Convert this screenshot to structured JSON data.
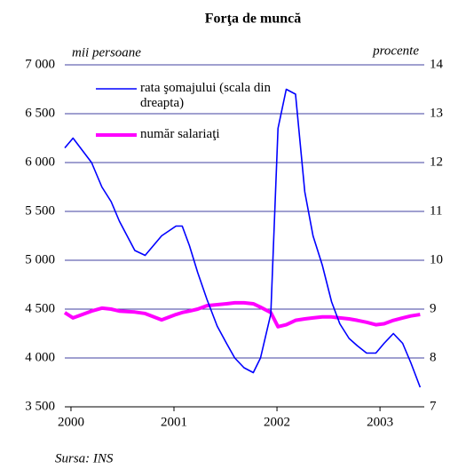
{
  "chart_data": {
    "type": "line",
    "title": "Forţa de muncă",
    "ylabel": "mii persoane",
    "y2label": "procente",
    "source": "Sursa: INS",
    "x": [
      1999.94,
      2000.02,
      2000.2,
      2000.3,
      2000.39,
      2000.47,
      2000.62,
      2000.72,
      2000.88,
      2001.02,
      2001.08,
      2001.15,
      2001.23,
      2001.32,
      2001.42,
      2001.51,
      2001.59,
      2001.68,
      2001.77,
      2001.84,
      2001.94,
      2002.01,
      2002.09,
      2002.18,
      2002.27,
      2002.35,
      2002.44,
      2002.53,
      2002.61,
      2002.7,
      2002.78,
      2002.87,
      2002.96,
      2003.04,
      2003.13,
      2003.22,
      2003.3,
      2003.39
    ],
    "series": [
      {
        "name": "rata şomajului (scala din dreapta)",
        "color": "#0000ff",
        "axis": "y2",
        "values": [
          12.3,
          12.5,
          12.0,
          11.5,
          11.2,
          10.8,
          10.2,
          10.1,
          10.5,
          10.7,
          10.7,
          10.3,
          9.75,
          9.2,
          8.65,
          8.3,
          8.0,
          7.8,
          7.7,
          8.0,
          8.9,
          12.7,
          13.5,
          13.4,
          11.4,
          10.5,
          9.9,
          9.15,
          8.7,
          8.4,
          8.25,
          8.1,
          8.1,
          8.3,
          8.5,
          8.3,
          7.9,
          7.4
        ]
      },
      {
        "name": "număr salariaţi",
        "color": "#ff00ff",
        "values": [
          4464,
          4410,
          4480,
          4510,
          4500,
          4480,
          4470,
          4455,
          4390,
          4445,
          4465,
          4480,
          4500,
          4535,
          4545,
          4555,
          4565,
          4565,
          4555,
          4520,
          4465,
          4320,
          4340,
          4385,
          4400,
          4410,
          4420,
          4420,
          4410,
          4400,
          4385,
          4365,
          4340,
          4350,
          4385,
          4410,
          4430,
          4445
        ]
      }
    ],
    "xlim": [
      1999.94,
      2003.43
    ],
    "xticks": [
      2000,
      2001,
      2002,
      2003
    ],
    "ylim": [
      3500,
      7000
    ],
    "yticks": [
      {
        "value": 3500,
        "label": "3 500"
      },
      {
        "value": 4000,
        "label": "4 000"
      },
      {
        "value": 4500,
        "label": "4 500"
      },
      {
        "value": 5000,
        "label": "5 000"
      },
      {
        "value": 5500,
        "label": "5 500"
      },
      {
        "value": 6000,
        "label": "6 000"
      },
      {
        "value": 6500,
        "label": "6 500"
      },
      {
        "value": 7000,
        "label": "7 000"
      }
    ],
    "y2lim": [
      7,
      14
    ],
    "y2ticks": [
      7,
      8,
      9,
      10,
      11,
      12,
      13,
      14
    ],
    "grid": true
  }
}
